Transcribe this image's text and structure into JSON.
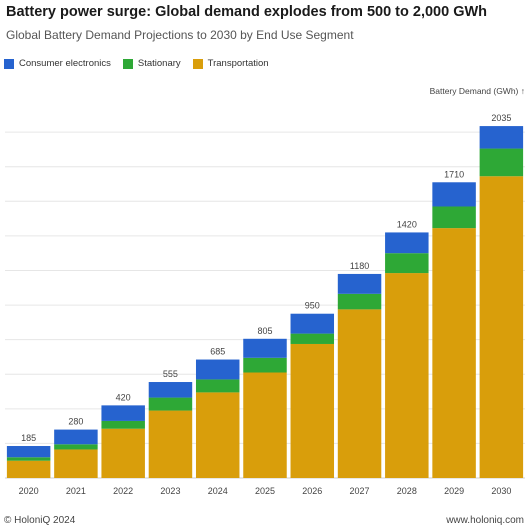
{
  "chart_data": {
    "type": "bar",
    "stacked": true,
    "title": "Battery power surge: Global demand explodes from 500 to 2,000 GWh",
    "subtitle": "Global Battery Demand Projections to 2030 by End Use Segment",
    "ylabel": "Battery Demand (GWh) ↑",
    "xlabel": "",
    "ylim": [
      0,
      2180
    ],
    "grid": true,
    "legend_position": "top-left",
    "categories": [
      "2020",
      "2021",
      "2022",
      "2023",
      "2024",
      "2025",
      "2026",
      "2027",
      "2028",
      "2029",
      "2030"
    ],
    "totals": [
      185,
      280,
      420,
      555,
      685,
      805,
      950,
      1180,
      1420,
      1710,
      2035
    ],
    "total_labels": [
      "185",
      "280",
      "420",
      "555",
      "685",
      "805",
      "950",
      "1180",
      "1420",
      "1710",
      "2035"
    ],
    "series": [
      {
        "name": "Transportation",
        "color": "#D99E0B",
        "values": [
          100,
          165,
          285,
          390,
          495,
          610,
          775,
          975,
          1185,
          1445,
          1745
        ]
      },
      {
        "name": "Stationary",
        "color": "#2EA836",
        "values": [
          20,
          30,
          45,
          75,
          75,
          85,
          60,
          90,
          115,
          125,
          160
        ]
      },
      {
        "name": "Consumer electronics",
        "color": "#2663CF",
        "values": [
          65,
          85,
          90,
          90,
          115,
          110,
          115,
          115,
          120,
          140,
          130
        ]
      }
    ],
    "legend": [
      "Consumer electronics",
      "Stationary",
      "Transportation"
    ]
  },
  "legend_colors": {
    "consumer": "#2663CF",
    "stationary": "#2EA836",
    "transportation": "#D99E0B"
  },
  "footer": {
    "left": "© HoloniQ 2024",
    "right": "www.holoniq.com"
  }
}
